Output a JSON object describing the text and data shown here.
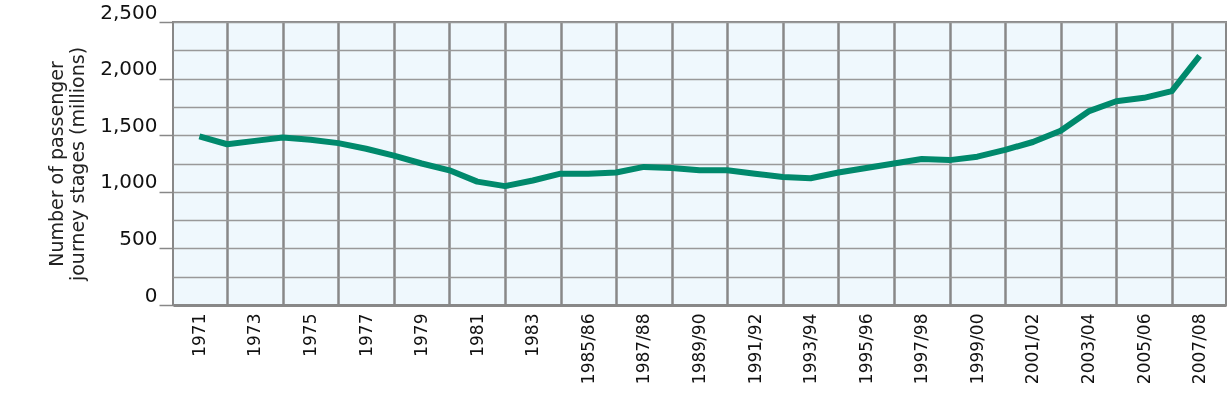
{
  "chart_data": {
    "type": "line",
    "ylabel": "Number of passenger\njourney stages (millions)",
    "categories": [
      "1971",
      null,
      "1973",
      null,
      "1975",
      null,
      "1977",
      null,
      "1979",
      null,
      "1981",
      null,
      "1983",
      null,
      "1985/86",
      null,
      "1987/88",
      null,
      "1989/90",
      null,
      "1991/92",
      null,
      "1993/94",
      null,
      "1995/96",
      null,
      "1997/98",
      null,
      "1999/00",
      null,
      "2001/02",
      null,
      "2003/04",
      null,
      "2005/06",
      null,
      "2007/08"
    ],
    "series": [
      {
        "color": "#00896c",
        "values": [
          1490,
          1420,
          1450,
          1480,
          1460,
          1430,
          1380,
          1320,
          1250,
          1190,
          1090,
          1050,
          1100,
          1160,
          1160,
          1170,
          1220,
          1210,
          1190,
          1190,
          1160,
          1130,
          1120,
          1170,
          1210,
          1250,
          1290,
          1280,
          1310,
          1370,
          1440,
          1540,
          1710,
          1800,
          1830,
          1890,
          2200
        ]
      }
    ],
    "ylim": [
      0,
      2500
    ],
    "yticks": [
      0,
      {
        "value": 250,
        "label": null
      },
      500,
      {
        "value": 750,
        "label": null
      },
      {
        "value": 1000,
        "label": "1,000"
      },
      {
        "value": 1250,
        "label": null
      },
      {
        "value": 1500,
        "label": "1,500"
      },
      {
        "value": 1750,
        "label": null
      },
      {
        "value": 2000,
        "label": "2,000"
      },
      {
        "value": 2250,
        "label": null
      },
      {
        "value": 2500,
        "label": "2,500"
      }
    ],
    "grid": true,
    "marker": "none",
    "line_style": "solid"
  }
}
